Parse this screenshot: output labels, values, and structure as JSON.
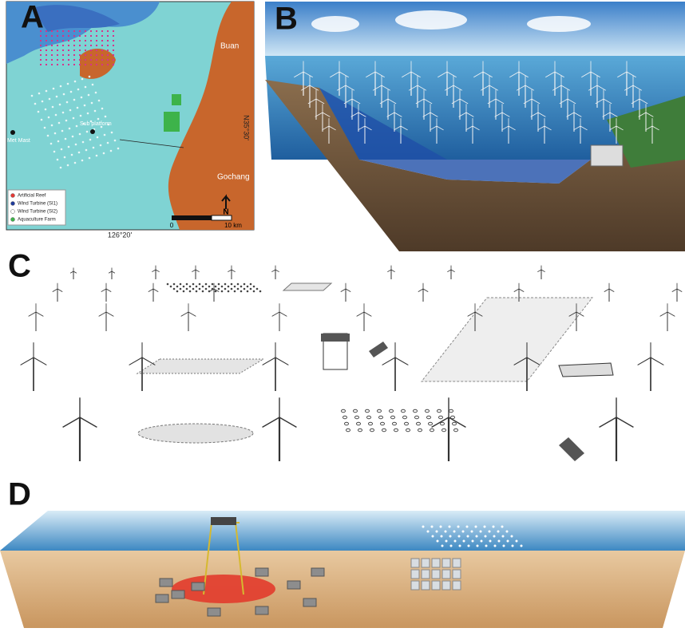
{
  "panels": [
    "A",
    "B",
    "C",
    "D"
  ],
  "map": {
    "places": [
      "Buan",
      "Gochang"
    ],
    "latitude": "N35°30'",
    "longitude": "126°20'",
    "sites": [
      "Met Mast",
      "Sub platform"
    ],
    "legend": [
      "Artificial Reef",
      "Wind Turbine (SI1)",
      "Wind Turbine (SI2)",
      "Aquaculture Farm"
    ],
    "scale": [
      "0",
      "10 km"
    ],
    "north": "N"
  }
}
